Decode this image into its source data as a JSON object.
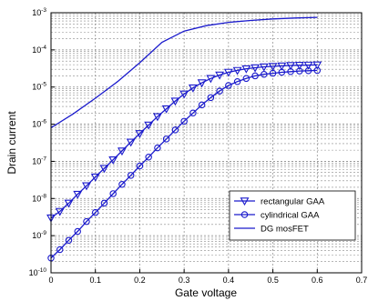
{
  "chart_data": {
    "type": "line",
    "title": "",
    "xlabel": "Gate voltage",
    "ylabel": "Drain current",
    "xlim": [
      0,
      0.7
    ],
    "ylim": [
      1e-10,
      0.001
    ],
    "yscale": "log",
    "x_ticks": [
      "0",
      "0.1",
      "0.2",
      "0.3",
      "0.4",
      "0.5",
      "0.6",
      "0.7"
    ],
    "y_ticks": [
      {
        "base": "10",
        "exp": "-10"
      },
      {
        "base": "10",
        "exp": "-9"
      },
      {
        "base": "10",
        "exp": "-8"
      },
      {
        "base": "10",
        "exp": "-7"
      },
      {
        "base": "10",
        "exp": "-6"
      },
      {
        "base": "10",
        "exp": "-5"
      },
      {
        "base": "10",
        "exp": "-4"
      },
      {
        "base": "10",
        "exp": "-3"
      }
    ],
    "grid": true,
    "legend_position": "bottom-right",
    "colors": {
      "series": "#1a1acc",
      "grid": "#8a8a8a",
      "axis": "#000000"
    },
    "series": [
      {
        "name": "rectangular GAA",
        "marker": "triangle-down",
        "x": [
          0,
          0.02,
          0.04,
          0.06,
          0.08,
          0.1,
          0.12,
          0.14,
          0.16,
          0.18,
          0.2,
          0.22,
          0.24,
          0.26,
          0.28,
          0.3,
          0.32,
          0.34,
          0.36,
          0.38,
          0.4,
          0.42,
          0.44,
          0.46,
          0.48,
          0.5,
          0.52,
          0.54,
          0.56,
          0.58,
          0.6
        ],
        "y": [
          3e-09,
          4.5e-09,
          7.5e-09,
          1.3e-08,
          2.2e-08,
          3.8e-08,
          6.5e-08,
          1.1e-07,
          1.9e-07,
          3.3e-07,
          5.6e-07,
          9.5e-07,
          1.6e-06,
          2.6e-06,
          4.2e-06,
          6.5e-06,
          9.5e-06,
          1.3e-05,
          1.7e-05,
          2.1e-05,
          2.5e-05,
          2.8e-05,
          3.1e-05,
          3.3e-05,
          3.5e-05,
          3.6e-05,
          3.7e-05,
          3.8e-05,
          3.85e-05,
          3.9e-05,
          3.95e-05
        ]
      },
      {
        "name": "cylindrical GAA",
        "marker": "circle",
        "x": [
          0,
          0.02,
          0.04,
          0.06,
          0.08,
          0.1,
          0.12,
          0.14,
          0.16,
          0.18,
          0.2,
          0.22,
          0.24,
          0.26,
          0.28,
          0.3,
          0.32,
          0.34,
          0.36,
          0.38,
          0.4,
          0.42,
          0.44,
          0.46,
          0.48,
          0.5,
          0.52,
          0.54,
          0.56,
          0.58,
          0.6
        ],
        "y": [
          2.5e-10,
          4.2e-10,
          7.5e-10,
          1.3e-09,
          2.4e-09,
          4.2e-09,
          7.5e-09,
          1.35e-08,
          2.4e-08,
          4.2e-08,
          7.5e-08,
          1.3e-07,
          2.3e-07,
          4e-07,
          7e-07,
          1.2e-06,
          2e-06,
          3.3e-06,
          5.2e-06,
          7.8e-06,
          1.1e-05,
          1.4e-05,
          1.7e-05,
          2e-05,
          2.2e-05,
          2.35e-05,
          2.5e-05,
          2.6e-05,
          2.7e-05,
          2.75e-05,
          2.8e-05
        ]
      },
      {
        "name": "DG mosFET",
        "marker": "none",
        "x": [
          0,
          0.05,
          0.1,
          0.15,
          0.2,
          0.25,
          0.3,
          0.35,
          0.4,
          0.45,
          0.5,
          0.55,
          0.6
        ],
        "y": [
          8e-07,
          1.9e-06,
          5e-06,
          1.4e-05,
          4.5e-05,
          0.00016,
          0.00032,
          0.00045,
          0.00055,
          0.00062,
          0.00068,
          0.00072,
          0.00075
        ]
      }
    ]
  }
}
